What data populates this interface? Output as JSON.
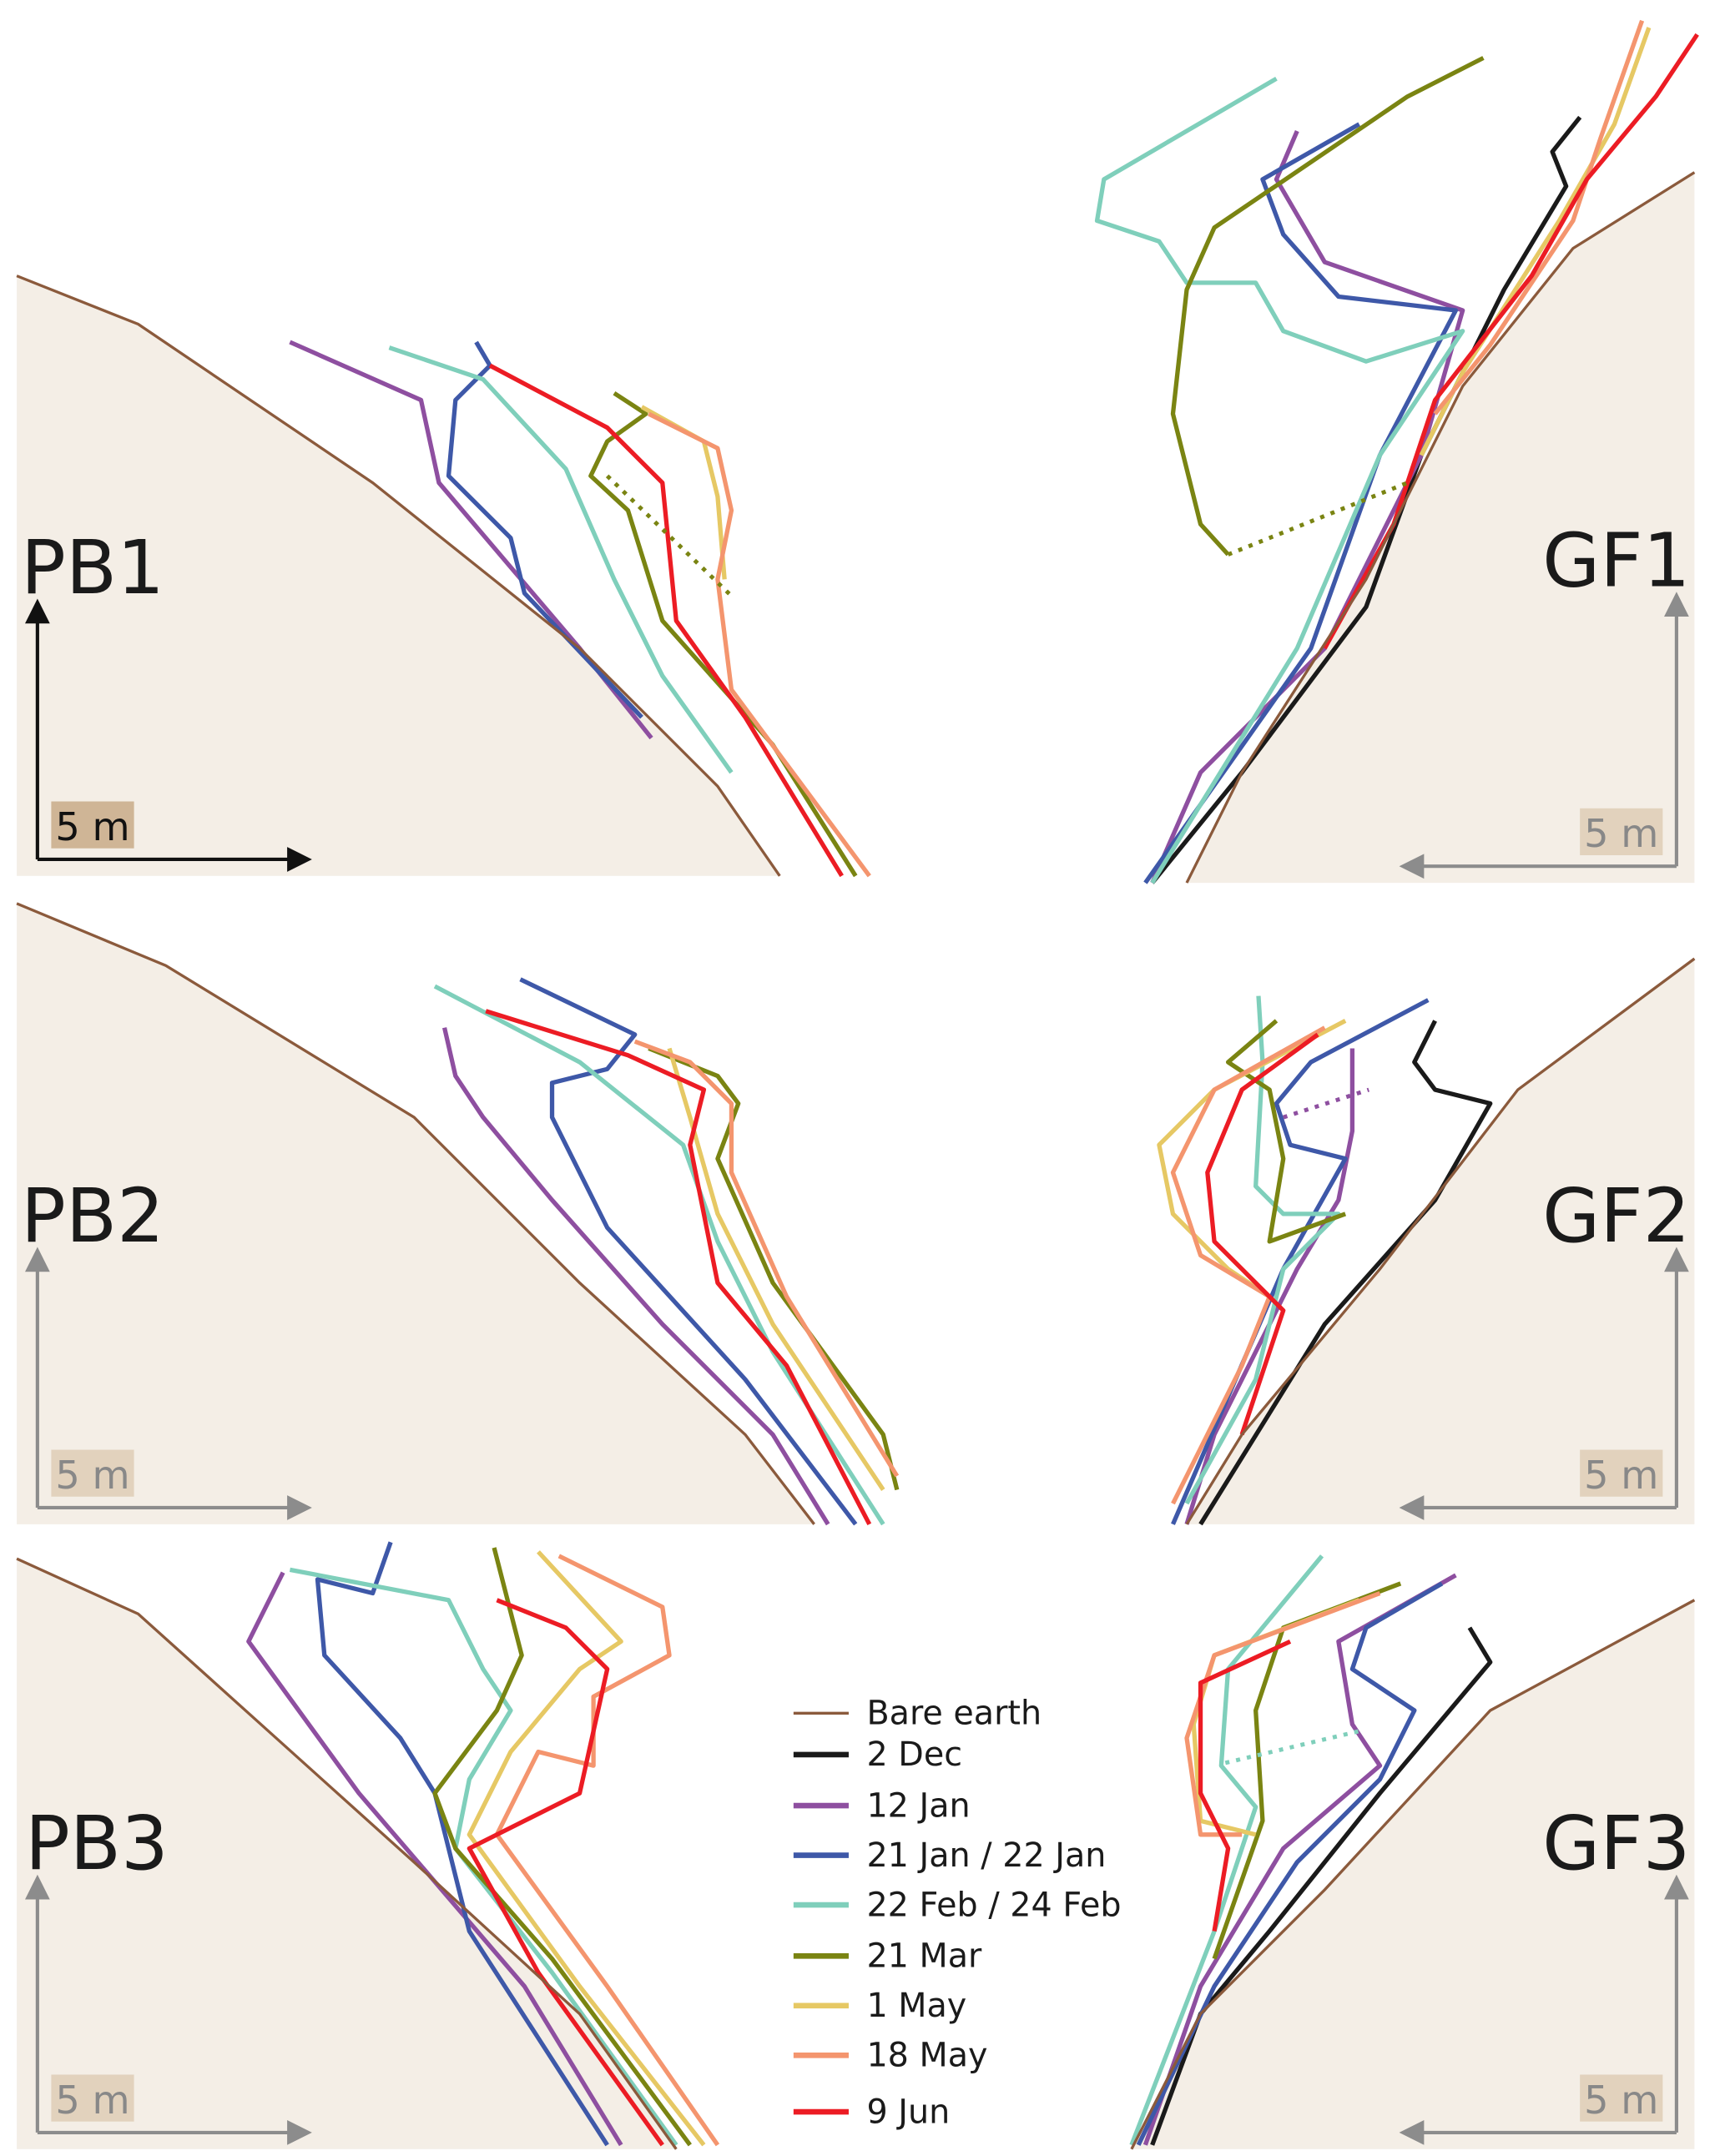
{
  "panels": [
    {
      "id": "PB1",
      "scale_label": "5 m"
    },
    {
      "id": "GF1",
      "scale_label": "5 m"
    },
    {
      "id": "PB2",
      "scale_label": "5 m"
    },
    {
      "id": "GF2",
      "scale_label": "5 m"
    },
    {
      "id": "PB3",
      "scale_label": "5 m"
    },
    {
      "id": "GF3",
      "scale_label": "5 m"
    }
  ],
  "legend": [
    {
      "label": "Bare earth",
      "color": "#8b5a3c"
    },
    {
      "label": "2 Dec",
      "color": "#1a1a1a"
    },
    {
      "label": "12 Jan",
      "color": "#8e4fa0"
    },
    {
      "label": "21 Jan / 22 Jan",
      "color": "#3e58a8"
    },
    {
      "label": "22 Feb / 24 Feb",
      "color": "#7fcfbb"
    },
    {
      "label": "21 Mar",
      "color": "#7a8412"
    },
    {
      "label": "1 May",
      "color": "#e6c864"
    },
    {
      "label": "18 May",
      "color": "#f4956e"
    },
    {
      "label": "9 Jun",
      "color": "#ec1c24"
    }
  ],
  "colors": {
    "ground_fill": "#f4eee6",
    "scale_box": "#e2d2bd",
    "scale_box_pb1": "#cfb596",
    "axis_grey": "#8c8c8c"
  }
}
